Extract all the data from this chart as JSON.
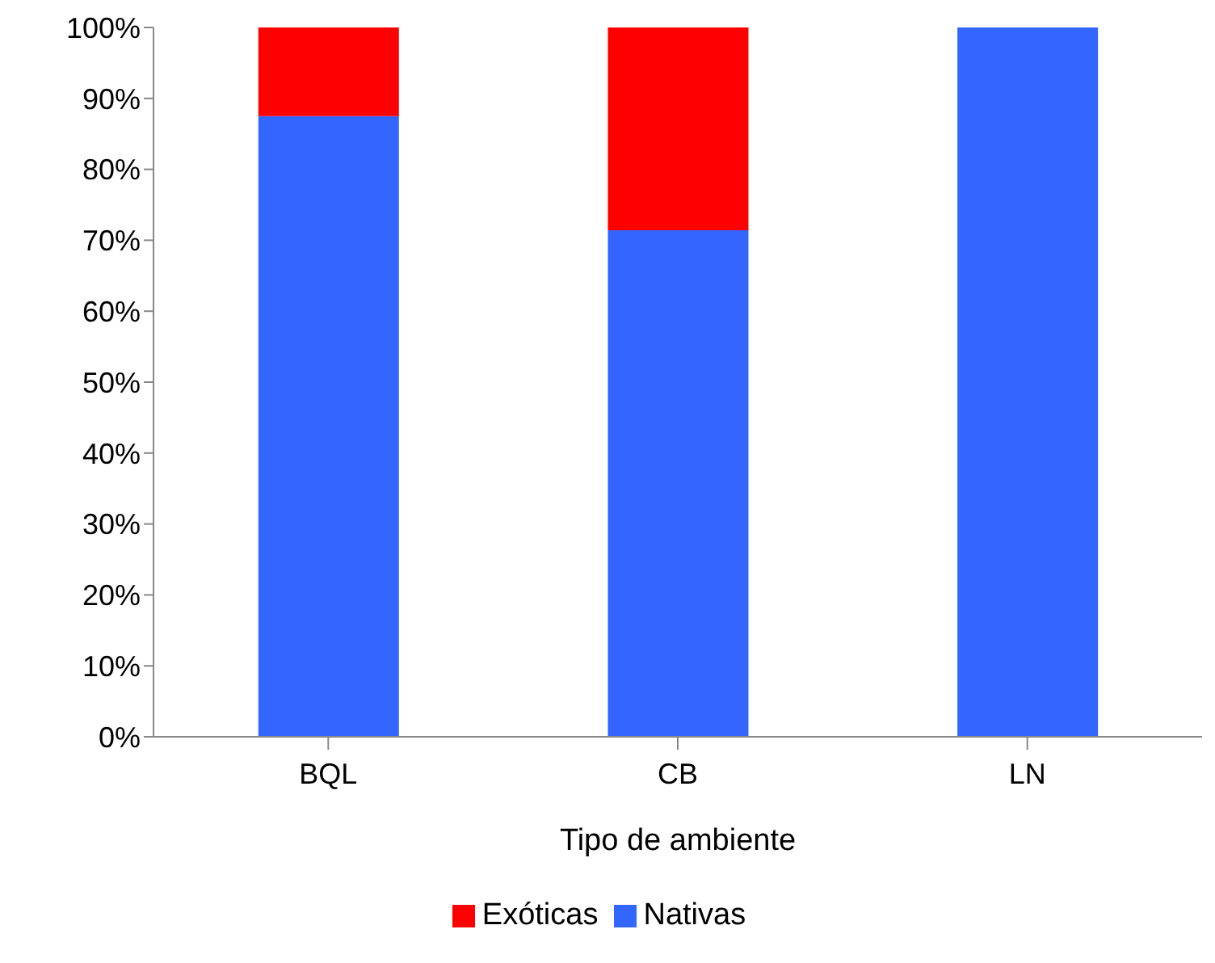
{
  "chart_data": {
    "type": "bar",
    "stacked": true,
    "categories": [
      "BQL",
      "CB",
      "LN"
    ],
    "series": [
      {
        "name": "Nativas",
        "color": "#3366ff",
        "values": [
          87.5,
          71.4,
          100
        ]
      },
      {
        "name": "Exóticas",
        "color": "#ff0000",
        "values": [
          12.5,
          28.6,
          0
        ]
      }
    ],
    "xlabel": "Tipo de ambiente",
    "ylim": [
      0,
      100
    ],
    "yticks": [
      {
        "value": 0,
        "label": "0%"
      },
      {
        "value": 10,
        "label": "10%"
      },
      {
        "value": 20,
        "label": "20%"
      },
      {
        "value": 30,
        "label": "30%"
      },
      {
        "value": 40,
        "label": "40%"
      },
      {
        "value": 50,
        "label": "50%"
      },
      {
        "value": 60,
        "label": "60%"
      },
      {
        "value": 70,
        "label": "70%"
      },
      {
        "value": 80,
        "label": "80%"
      },
      {
        "value": 90,
        "label": "90%"
      },
      {
        "value": 100,
        "label": "100%"
      }
    ],
    "grid": false,
    "legend": "bottom"
  }
}
